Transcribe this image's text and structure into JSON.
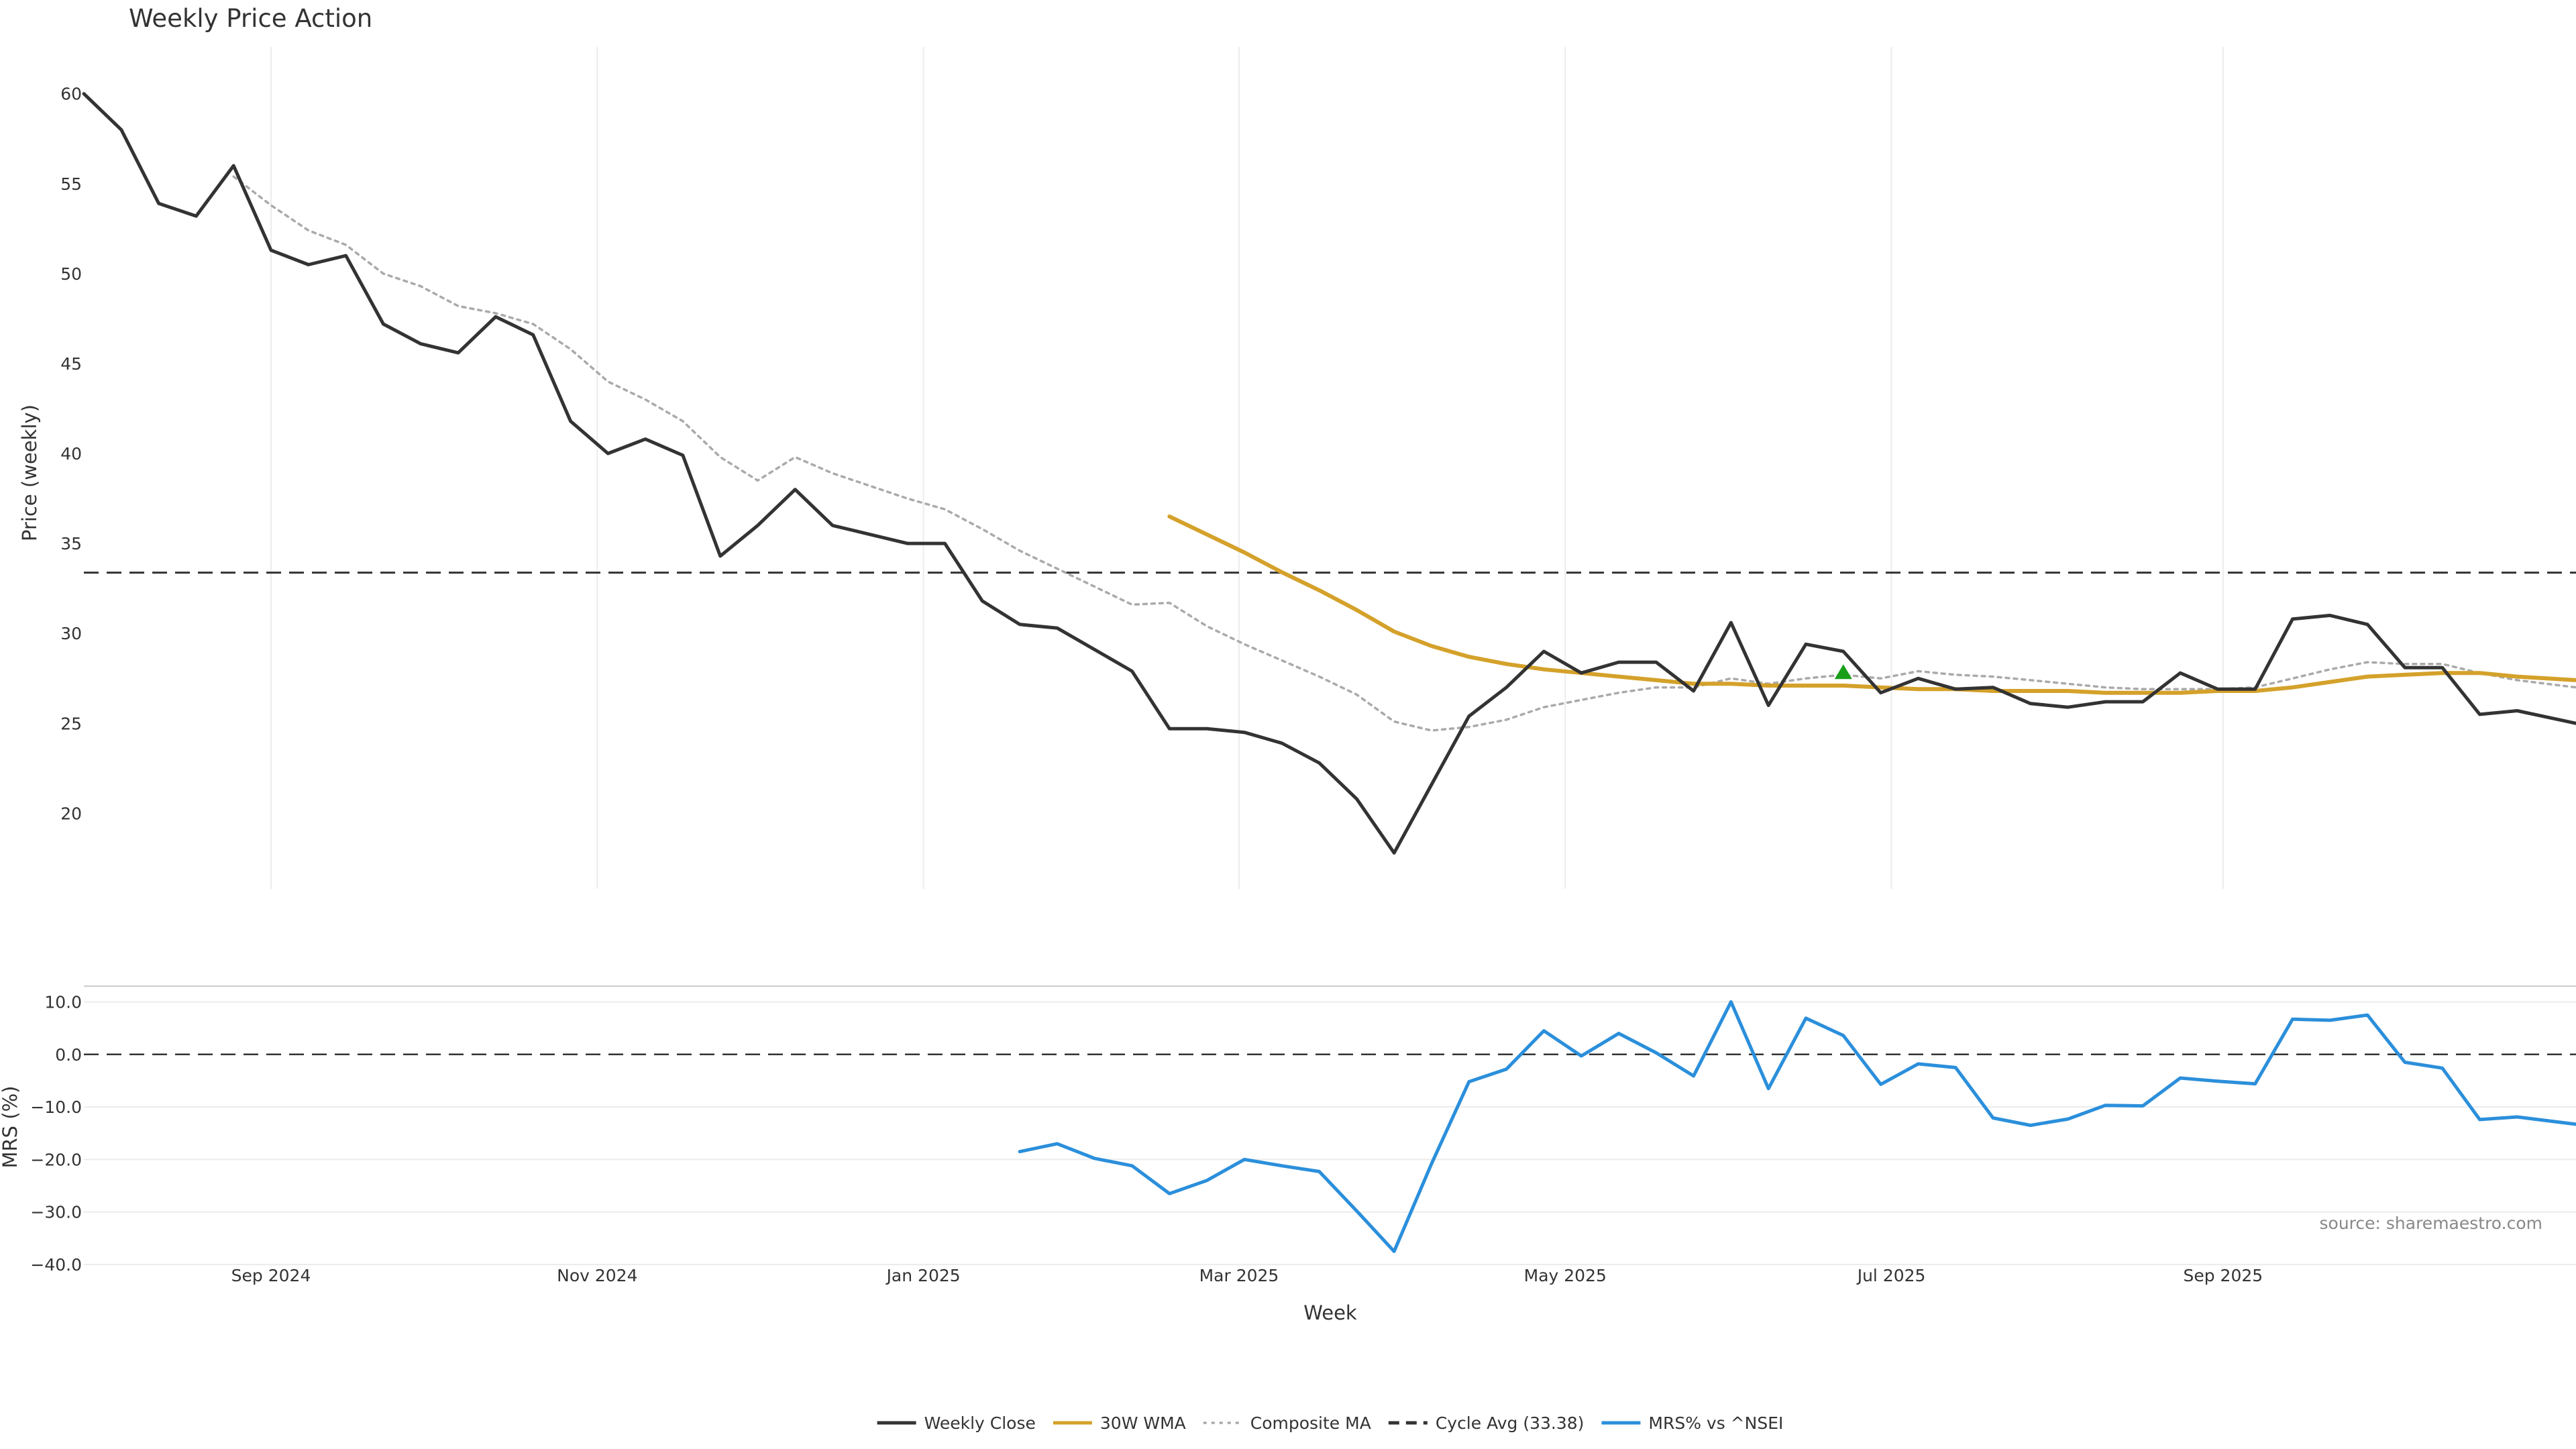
{
  "chart_data": {
    "type": "line",
    "title": "Weekly Price Action",
    "xlabel": "Week",
    "ylabel": "Price (weekly)",
    "ylabel_lower": "MRS (%)",
    "source": "source: sharemaestro.com",
    "x_ticks": [
      "Sep 2024",
      "Nov 2024",
      "Jan 2025",
      "Mar 2025",
      "May 2025",
      "Jul 2025",
      "Sep 2025"
    ],
    "x_tick_dates": [
      "2024-09-01",
      "2024-11-01",
      "2025-01-01",
      "2025-03-01",
      "2025-05-01",
      "2025-07-01",
      "2025-09-01"
    ],
    "x_range": [
      "2024-07-28",
      "2025-11-06"
    ],
    "price_axis": {
      "ylim": [
        15.8,
        62.6
      ],
      "ticks": [
        20,
        25,
        30,
        35,
        40,
        45,
        50,
        55,
        60
      ],
      "grid_x": true,
      "grid_y": false
    },
    "mrs_axis": {
      "ylim": [
        -40,
        13
      ],
      "ticks": [
        -40.0,
        -30.0,
        -20.0,
        -10.0,
        0.0,
        10.0
      ],
      "tick_labels": [
        "−40.0",
        "−30.0",
        "−20.0",
        "−10.0",
        "0.0",
        "10.0"
      ],
      "grid_y": true
    },
    "cycle_avg": 33.38,
    "legend_position": "bottom-center",
    "series": [
      {
        "name": "Weekly Close",
        "color": "#333333",
        "style": "solid",
        "panel": "price",
        "points": [
          [
            "2024-07-28",
            60.0
          ],
          [
            "2024-08-04",
            58.0
          ],
          [
            "2024-08-11",
            53.9
          ],
          [
            "2024-08-18",
            53.2
          ],
          [
            "2024-08-25",
            56.0
          ],
          [
            "2024-09-01",
            51.3
          ],
          [
            "2024-09-08",
            50.5
          ],
          [
            "2024-09-15",
            51.0
          ],
          [
            "2024-09-22",
            47.2
          ],
          [
            "2024-09-29",
            46.1
          ],
          [
            "2024-10-06",
            45.6
          ],
          [
            "2024-10-13",
            47.6
          ],
          [
            "2024-10-20",
            46.6
          ],
          [
            "2024-10-27",
            41.8
          ],
          [
            "2024-11-03",
            40.0
          ],
          [
            "2024-11-10",
            40.8
          ],
          [
            "2024-11-17",
            39.9
          ],
          [
            "2024-11-24",
            34.3
          ],
          [
            "2024-12-01",
            36.0
          ],
          [
            "2024-12-08",
            38.0
          ],
          [
            "2024-12-15",
            36.0
          ],
          [
            "2024-12-22",
            35.5
          ],
          [
            "2024-12-29",
            35.0
          ],
          [
            "2025-01-05",
            35.0
          ],
          [
            "2025-01-12",
            31.8
          ],
          [
            "2025-01-19",
            30.5
          ],
          [
            "2025-01-26",
            30.3
          ],
          [
            "2025-02-02",
            29.1
          ],
          [
            "2025-02-09",
            27.9
          ],
          [
            "2025-02-16",
            24.7
          ],
          [
            "2025-02-23",
            24.7
          ],
          [
            "2025-03-02",
            24.5
          ],
          [
            "2025-03-09",
            23.9
          ],
          [
            "2025-03-16",
            22.8
          ],
          [
            "2025-03-23",
            20.8
          ],
          [
            "2025-03-30",
            17.8
          ],
          [
            "2025-04-06",
            21.6
          ],
          [
            "2025-04-13",
            25.4
          ],
          [
            "2025-04-20",
            27.0
          ],
          [
            "2025-04-27",
            29.0
          ],
          [
            "2025-05-04",
            27.8
          ],
          [
            "2025-05-11",
            28.4
          ],
          [
            "2025-05-18",
            28.4
          ],
          [
            "2025-05-25",
            26.8
          ],
          [
            "2025-06-01",
            30.6
          ],
          [
            "2025-06-08",
            26.0
          ],
          [
            "2025-06-15",
            29.4
          ],
          [
            "2025-06-22",
            29.0
          ],
          [
            "2025-06-29",
            26.7
          ],
          [
            "2025-07-06",
            27.5
          ],
          [
            "2025-07-13",
            26.9
          ],
          [
            "2025-07-20",
            27.0
          ],
          [
            "2025-07-27",
            26.1
          ],
          [
            "2025-08-03",
            25.9
          ],
          [
            "2025-08-10",
            26.2
          ],
          [
            "2025-08-17",
            26.2
          ],
          [
            "2025-08-24",
            27.8
          ],
          [
            "2025-08-31",
            26.9
          ],
          [
            "2025-09-07",
            26.9
          ],
          [
            "2025-09-14",
            30.8
          ],
          [
            "2025-09-21",
            31.0
          ],
          [
            "2025-09-28",
            30.5
          ],
          [
            "2025-10-05",
            28.1
          ],
          [
            "2025-10-12",
            28.1
          ],
          [
            "2025-10-19",
            25.5
          ],
          [
            "2025-10-26",
            25.7
          ],
          [
            "2025-11-06",
            25.0
          ]
        ]
      },
      {
        "name": "30W WMA",
        "color": "#D4A12A",
        "style": "solid",
        "panel": "price",
        "points": [
          [
            "2025-02-16",
            36.5
          ],
          [
            "2025-02-23",
            35.5
          ],
          [
            "2025-03-02",
            34.5
          ],
          [
            "2025-03-09",
            33.4
          ],
          [
            "2025-03-16",
            32.4
          ],
          [
            "2025-03-23",
            31.3
          ],
          [
            "2025-03-30",
            30.1
          ],
          [
            "2025-04-06",
            29.3
          ],
          [
            "2025-04-13",
            28.7
          ],
          [
            "2025-04-20",
            28.3
          ],
          [
            "2025-04-27",
            28.0
          ],
          [
            "2025-05-04",
            27.8
          ],
          [
            "2025-05-11",
            27.6
          ],
          [
            "2025-05-18",
            27.4
          ],
          [
            "2025-05-25",
            27.2
          ],
          [
            "2025-06-01",
            27.2
          ],
          [
            "2025-06-08",
            27.1
          ],
          [
            "2025-06-15",
            27.1
          ],
          [
            "2025-06-22",
            27.1
          ],
          [
            "2025-06-29",
            27.0
          ],
          [
            "2025-07-06",
            26.9
          ],
          [
            "2025-07-13",
            26.9
          ],
          [
            "2025-07-20",
            26.8
          ],
          [
            "2025-07-27",
            26.8
          ],
          [
            "2025-08-03",
            26.8
          ],
          [
            "2025-08-10",
            26.7
          ],
          [
            "2025-08-17",
            26.7
          ],
          [
            "2025-08-24",
            26.7
          ],
          [
            "2025-08-31",
            26.8
          ],
          [
            "2025-09-07",
            26.8
          ],
          [
            "2025-09-14",
            27.0
          ],
          [
            "2025-09-21",
            27.3
          ],
          [
            "2025-09-28",
            27.6
          ],
          [
            "2025-10-05",
            27.7
          ],
          [
            "2025-10-12",
            27.8
          ],
          [
            "2025-10-19",
            27.8
          ],
          [
            "2025-10-26",
            27.6
          ],
          [
            "2025-11-06",
            27.4
          ]
        ]
      },
      {
        "name": "Composite MA",
        "color": "#AAAAAA",
        "style": "dotted",
        "panel": "price",
        "points": [
          [
            "2024-08-25",
            55.4
          ],
          [
            "2024-09-01",
            53.8
          ],
          [
            "2024-09-08",
            52.4
          ],
          [
            "2024-09-15",
            51.6
          ],
          [
            "2024-09-22",
            50.0
          ],
          [
            "2024-09-29",
            49.3
          ],
          [
            "2024-10-06",
            48.2
          ],
          [
            "2024-10-13",
            47.8
          ],
          [
            "2024-10-20",
            47.2
          ],
          [
            "2024-10-27",
            45.8
          ],
          [
            "2024-11-03",
            44.0
          ],
          [
            "2024-11-10",
            43.0
          ],
          [
            "2024-11-17",
            41.8
          ],
          [
            "2024-11-24",
            39.8
          ],
          [
            "2024-12-01",
            38.5
          ],
          [
            "2024-12-08",
            39.8
          ],
          [
            "2024-12-15",
            38.9
          ],
          [
            "2024-12-22",
            38.2
          ],
          [
            "2024-12-29",
            37.5
          ],
          [
            "2025-01-05",
            36.9
          ],
          [
            "2025-01-12",
            35.8
          ],
          [
            "2025-01-19",
            34.6
          ],
          [
            "2025-01-26",
            33.6
          ],
          [
            "2025-02-02",
            32.6
          ],
          [
            "2025-02-09",
            31.6
          ],
          [
            "2025-02-16",
            31.7
          ],
          [
            "2025-02-23",
            30.4
          ],
          [
            "2025-03-02",
            29.4
          ],
          [
            "2025-03-09",
            28.5
          ],
          [
            "2025-03-16",
            27.6
          ],
          [
            "2025-03-23",
            26.6
          ],
          [
            "2025-03-30",
            25.1
          ],
          [
            "2025-04-06",
            24.6
          ],
          [
            "2025-04-13",
            24.8
          ],
          [
            "2025-04-20",
            25.2
          ],
          [
            "2025-04-27",
            25.9
          ],
          [
            "2025-05-04",
            26.3
          ],
          [
            "2025-05-11",
            26.7
          ],
          [
            "2025-05-18",
            27.0
          ],
          [
            "2025-05-25",
            27.0
          ],
          [
            "2025-06-01",
            27.5
          ],
          [
            "2025-06-08",
            27.2
          ],
          [
            "2025-06-15",
            27.5
          ],
          [
            "2025-06-22",
            27.7
          ],
          [
            "2025-06-29",
            27.5
          ],
          [
            "2025-07-06",
            27.9
          ],
          [
            "2025-07-13",
            27.7
          ],
          [
            "2025-07-20",
            27.6
          ],
          [
            "2025-07-27",
            27.4
          ],
          [
            "2025-08-03",
            27.2
          ],
          [
            "2025-08-10",
            27.0
          ],
          [
            "2025-08-17",
            26.9
          ],
          [
            "2025-08-24",
            26.9
          ],
          [
            "2025-08-31",
            26.9
          ],
          [
            "2025-09-07",
            27.0
          ],
          [
            "2025-09-14",
            27.5
          ],
          [
            "2025-09-21",
            28.0
          ],
          [
            "2025-09-28",
            28.4
          ],
          [
            "2025-10-05",
            28.3
          ],
          [
            "2025-10-12",
            28.3
          ],
          [
            "2025-10-19",
            27.8
          ],
          [
            "2025-10-26",
            27.4
          ],
          [
            "2025-11-06",
            27.0
          ]
        ]
      },
      {
        "name": "MRS% vs ^NSEI",
        "color": "#2B8FDB",
        "style": "solid",
        "panel": "mrs",
        "points": [
          [
            "2025-01-19",
            -18.5
          ],
          [
            "2025-01-26",
            -17.0
          ],
          [
            "2025-02-02",
            -19.8
          ],
          [
            "2025-02-09",
            -21.2
          ],
          [
            "2025-02-16",
            -26.5
          ],
          [
            "2025-02-23",
            -24.0
          ],
          [
            "2025-03-02",
            -20.0
          ],
          [
            "2025-03-09",
            -21.2
          ],
          [
            "2025-03-16",
            -22.3
          ],
          [
            "2025-03-23",
            -29.8
          ],
          [
            "2025-03-30",
            -37.5
          ],
          [
            "2025-04-06",
            -20.8
          ],
          [
            "2025-04-13",
            -5.2
          ],
          [
            "2025-04-20",
            -2.8
          ],
          [
            "2025-04-27",
            4.5
          ],
          [
            "2025-05-04",
            -0.3
          ],
          [
            "2025-05-11",
            4.0
          ],
          [
            "2025-05-18",
            0.3
          ],
          [
            "2025-05-25",
            -4.1
          ],
          [
            "2025-06-01",
            10.0
          ],
          [
            "2025-06-08",
            -6.5
          ],
          [
            "2025-06-15",
            6.9
          ],
          [
            "2025-06-22",
            3.6
          ],
          [
            "2025-06-29",
            -5.7
          ],
          [
            "2025-07-06",
            -1.8
          ],
          [
            "2025-07-13",
            -2.5
          ],
          [
            "2025-07-20",
            -12.1
          ],
          [
            "2025-07-27",
            -13.5
          ],
          [
            "2025-08-03",
            -12.3
          ],
          [
            "2025-08-10",
            -9.7
          ],
          [
            "2025-08-17",
            -9.8
          ],
          [
            "2025-08-24",
            -4.5
          ],
          [
            "2025-08-31",
            -5.1
          ],
          [
            "2025-09-07",
            -5.6
          ],
          [
            "2025-09-14",
            6.7
          ],
          [
            "2025-09-21",
            6.5
          ],
          [
            "2025-09-28",
            7.5
          ],
          [
            "2025-10-05",
            -1.5
          ],
          [
            "2025-10-12",
            -2.6
          ],
          [
            "2025-10-19",
            -12.4
          ],
          [
            "2025-10-26",
            -11.9
          ],
          [
            "2025-11-06",
            -13.3
          ]
        ]
      }
    ],
    "markers": [
      {
        "type": "triangle-up",
        "color": "#1A9E1A",
        "date": "2025-06-22",
        "value": 27.8
      }
    ],
    "legend": [
      {
        "label": "Weekly Close",
        "color": "#333333",
        "style": "solid"
      },
      {
        "label": "30W WMA",
        "color": "#D4A12A",
        "style": "solid"
      },
      {
        "label": "Composite MA",
        "color": "#AAAAAA",
        "style": "dotted"
      },
      {
        "label": "Cycle Avg (33.38)",
        "color": "#333333",
        "style": "dashed"
      },
      {
        "label": "MRS% vs ^NSEI",
        "color": "#2B8FDB",
        "style": "solid"
      }
    ]
  }
}
